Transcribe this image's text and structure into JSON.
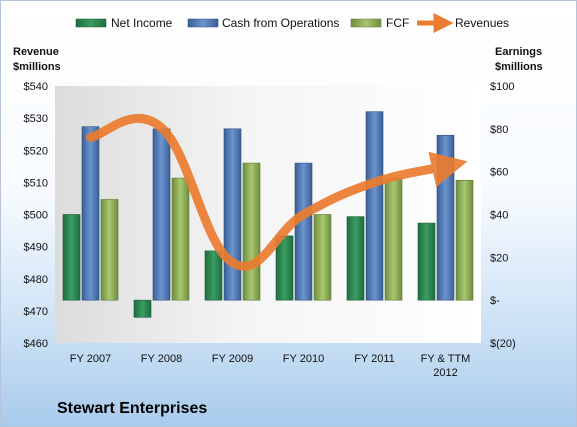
{
  "chart_data": {
    "type": "bar",
    "title": "Stewart Enterprises",
    "categories": [
      "FY 2007",
      "FY 2008",
      "FY 2009",
      "FY 2010",
      "FY 2011",
      "FY & TTM|2012"
    ],
    "left_axis": {
      "label_lines": [
        "Revenue",
        "$millions"
      ],
      "ylim": [
        460,
        540
      ],
      "ticks": [
        460,
        470,
        480,
        490,
        500,
        510,
        520,
        530,
        540
      ],
      "tick_labels": [
        "$460",
        "$470",
        "$480",
        "$490",
        "$500",
        "$510",
        "$520",
        "$530",
        "$540"
      ]
    },
    "right_axis": {
      "label_lines": [
        "Earnings",
        "$millions"
      ],
      "ylim": [
        -20,
        100
      ],
      "ticks": [
        -20,
        0,
        20,
        40,
        60,
        80,
        100
      ],
      "tick_labels": [
        "$(20)",
        "$-",
        "$20",
        "$40",
        "$60",
        "$80",
        "$100"
      ]
    },
    "series": [
      {
        "name": "Net Income",
        "axis": "right",
        "kind": "bar",
        "color": "#2e8b57",
        "values": [
          40,
          -8,
          23,
          30,
          39,
          36
        ]
      },
      {
        "name": "Cash from Operations",
        "axis": "right",
        "kind": "bar",
        "color": "#4f7fbf",
        "values": [
          81,
          80,
          80,
          64,
          88,
          77
        ]
      },
      {
        "name": "FCF",
        "axis": "right",
        "kind": "bar",
        "color": "#8fb15c",
        "values": [
          47,
          57,
          64,
          40,
          57,
          56
        ]
      },
      {
        "name": "Revenues",
        "axis": "left",
        "kind": "line",
        "color": "#ec7c30",
        "values": [
          524,
          527,
          485,
          500,
          510,
          515
        ]
      }
    ],
    "grid": false,
    "legend_position": "top"
  }
}
